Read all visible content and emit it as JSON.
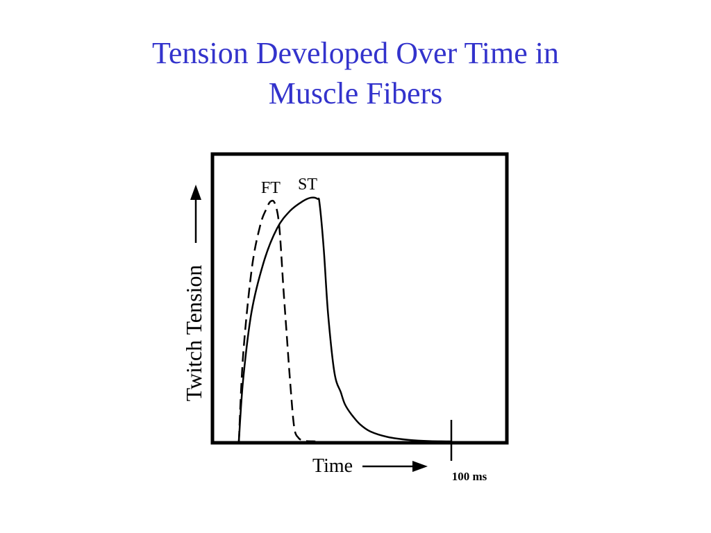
{
  "slide": {
    "title_line1": "Tension Developed Over Time in",
    "title_line2": "Muscle Fibers",
    "title_color": "#3333cc"
  },
  "chart_data": {
    "type": "line",
    "title": "",
    "xlabel": "Time",
    "ylabel": "Twitch Tension",
    "x_marker_label": "100 ms",
    "x_marker_value": 100,
    "xlim": [
      0,
      110
    ],
    "ylim": [
      0,
      100
    ],
    "grid": false,
    "legend": "none",
    "series": [
      {
        "name": "FT",
        "style": "dashed",
        "x": [
          0,
          2,
          6,
          10,
          13,
          15,
          17,
          19,
          21,
          22,
          24,
          26,
          28,
          30,
          32,
          36
        ],
        "y": [
          0,
          35,
          70,
          88,
          95,
          98,
          97,
          88,
          62,
          50,
          26,
          6,
          1.5,
          0.5,
          0.1,
          0
        ]
      },
      {
        "name": "ST",
        "style": "solid",
        "x": [
          0,
          2,
          6,
          12,
          18,
          24,
          30,
          34,
          37,
          38,
          40,
          42,
          45,
          48,
          50,
          53,
          57,
          62,
          70,
          80,
          90,
          100
        ],
        "y": [
          0,
          25,
          53,
          74,
          87,
          94,
          98,
          99.5,
          99,
          97,
          78,
          52,
          28,
          20,
          15,
          11,
          7,
          4,
          1.8,
          0.6,
          0.1,
          0
        ]
      }
    ]
  }
}
